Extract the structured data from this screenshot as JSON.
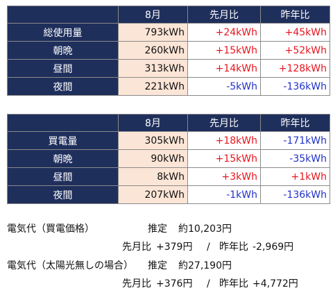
{
  "tables": [
    {
      "header": {
        "corner": "",
        "col_value": "8月",
        "col_mom": "先月比",
        "col_yoy": "昨年比"
      },
      "rows": [
        {
          "label": "総使用量",
          "value": "793kWh",
          "mom": "+24kWh",
          "yoy": "+45kWh",
          "mom_sign": "pos",
          "yoy_sign": "pos"
        },
        {
          "label": "朝晩",
          "value": "260kWh",
          "mom": "+15kWh",
          "yoy": "+52kWh",
          "mom_sign": "pos",
          "yoy_sign": "pos"
        },
        {
          "label": "昼間",
          "value": "313kWh",
          "mom": "+14kWh",
          "yoy": "+128kWh",
          "mom_sign": "pos",
          "yoy_sign": "pos"
        },
        {
          "label": "夜間",
          "value": "221kWh",
          "mom": "-5kWh",
          "yoy": "-136kWh",
          "mom_sign": "neg",
          "yoy_sign": "neg"
        }
      ]
    },
    {
      "header": {
        "corner": "",
        "col_value": "8月",
        "col_mom": "先月比",
        "col_yoy": "昨年比"
      },
      "rows": [
        {
          "label": "買電量",
          "value": "305kWh",
          "mom": "+18kWh",
          "yoy": "-171kWh",
          "mom_sign": "pos",
          "yoy_sign": "neg"
        },
        {
          "label": "朝晩",
          "value": "90kWh",
          "mom": "+15kWh",
          "yoy": "-35kWh",
          "mom_sign": "pos",
          "yoy_sign": "neg"
        },
        {
          "label": "昼間",
          "value": "8kWh",
          "mom": "+3kWh",
          "yoy": "+1kWh",
          "mom_sign": "pos",
          "yoy_sign": "pos"
        },
        {
          "label": "夜間",
          "value": "207kWh",
          "mom": "-1kWh",
          "yoy": "-136kWh",
          "mom_sign": "neg",
          "yoy_sign": "neg"
        }
      ]
    }
  ],
  "costs": [
    {
      "title": "電気代（買電価格）",
      "estimate_label": "推定",
      "estimate_value": "約10,203円",
      "mom_label": "先月比",
      "mom_value": "+379円",
      "separator": "/",
      "yoy_label": "昨年比",
      "yoy_value": "-2,969円"
    },
    {
      "title": "電気代（太陽光無しの場合）",
      "estimate_label": "推定",
      "estimate_value": "約27,190円",
      "mom_label": "先月比",
      "mom_value": "+376円",
      "separator": "/",
      "yoy_label": "昨年比",
      "yoy_value": "+4,772円"
    }
  ],
  "colors": {
    "header_bg": "#1f2f5c",
    "value_bg": "#fbe5d6",
    "positive": "#e8141e",
    "negative": "#2030c8"
  }
}
